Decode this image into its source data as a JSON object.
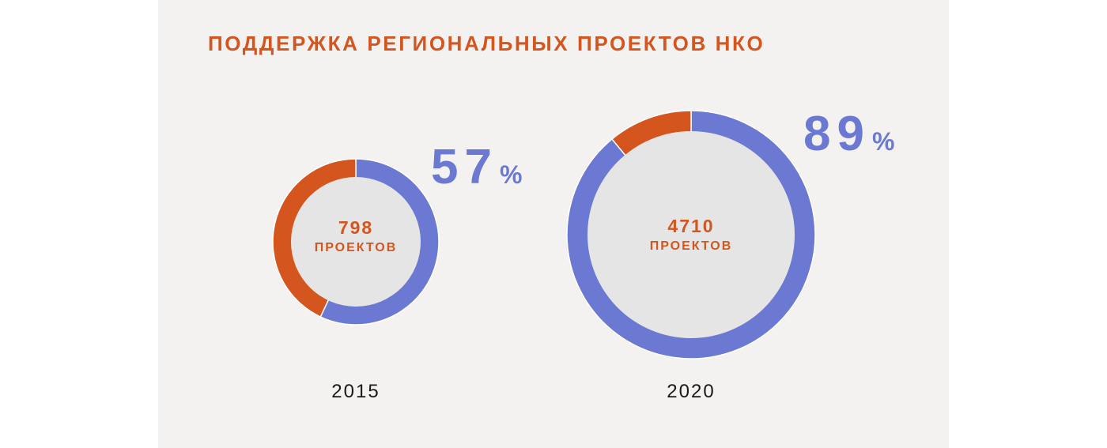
{
  "chart_data": {
    "type": "pie",
    "title": "ПОДДЕРЖКА РЕГИОНАЛЬНЫХ ПРОЕКТОВ НКО",
    "colors": {
      "share": "#6b79d2",
      "rest": "#d4561e",
      "inner": "#e6e5e5",
      "panel": "#f3f2f0"
    },
    "charts": [
      {
        "year": "2015",
        "projects": "798",
        "projects_label": "ПРОЕКТОВ",
        "percent_value": 57,
        "percent_number": "57",
        "percent_sign": "%"
      },
      {
        "year": "2020",
        "projects": "4710",
        "projects_label": "ПРОЕКТОВ",
        "percent_value": 89,
        "percent_number": "89",
        "percent_sign": "%"
      }
    ]
  }
}
